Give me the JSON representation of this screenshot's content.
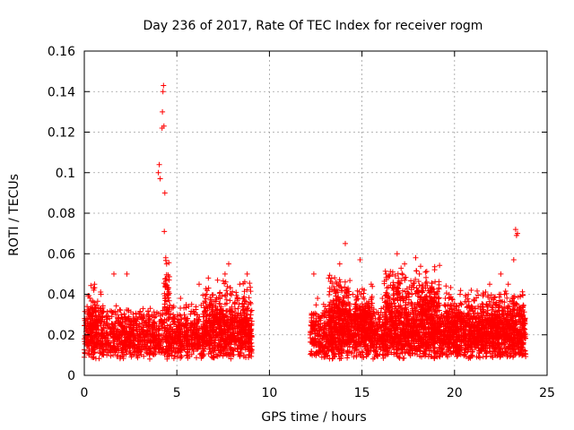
{
  "chart_data": {
    "type": "scatter",
    "title": "Day 236 of 2017, Rate Of TEC Index for receiver rogm",
    "xlabel": "GPS time / hours",
    "ylabel": "ROTI / TECUs",
    "xlim": [
      0,
      25
    ],
    "ylim": [
      0,
      0.16
    ],
    "xticks": [
      0,
      5,
      10,
      15,
      20,
      25
    ],
    "yticks": [
      0,
      0.02,
      0.04,
      0.06,
      0.08,
      0.1,
      0.12,
      0.14,
      0.16
    ],
    "xtick_labels": [
      "0",
      "5",
      "10",
      "15",
      "20",
      "25"
    ],
    "ytick_labels": [
      "0",
      "0.02",
      "0.04",
      "0.06",
      "0.08",
      "0.1",
      "0.12",
      "0.14",
      "0.16"
    ],
    "grid": true,
    "marker": "+",
    "color": "#ff0000",
    "series": [
      {
        "name": "ROTI",
        "points": [
          [
            0.0,
            0.018
          ],
          [
            0.1,
            0.028
          ],
          [
            0.15,
            0.034
          ],
          [
            0.2,
            0.012
          ],
          [
            0.3,
            0.022
          ],
          [
            0.4,
            0.016
          ],
          [
            0.5,
            0.043
          ],
          [
            0.55,
            0.045
          ],
          [
            0.6,
            0.025
          ],
          [
            0.7,
            0.014
          ],
          [
            0.8,
            0.02
          ],
          [
            0.9,
            0.04
          ],
          [
            1.0,
            0.012
          ],
          [
            1.1,
            0.018
          ],
          [
            1.2,
            0.026
          ],
          [
            1.3,
            0.015
          ],
          [
            1.5,
            0.022
          ],
          [
            1.6,
            0.05
          ],
          [
            1.7,
            0.03
          ],
          [
            1.8,
            0.01
          ],
          [
            2.0,
            0.016
          ],
          [
            2.1,
            0.024
          ],
          [
            2.3,
            0.05
          ],
          [
            2.4,
            0.032
          ],
          [
            2.5,
            0.014
          ],
          [
            2.7,
            0.02
          ],
          [
            2.9,
            0.012
          ],
          [
            3.1,
            0.03
          ],
          [
            3.2,
            0.022
          ],
          [
            3.4,
            0.016
          ],
          [
            3.6,
            0.011
          ],
          [
            3.8,
            0.018
          ],
          [
            3.9,
            0.02
          ],
          [
            4.0,
            0.1
          ],
          [
            4.05,
            0.104
          ],
          [
            4.1,
            0.097
          ],
          [
            4.2,
            0.122
          ],
          [
            4.22,
            0.13
          ],
          [
            4.25,
            0.14
          ],
          [
            4.28,
            0.143
          ],
          [
            4.3,
            0.123
          ],
          [
            4.32,
            0.071
          ],
          [
            4.35,
            0.09
          ],
          [
            4.4,
            0.058
          ],
          [
            4.45,
            0.055
          ],
          [
            4.5,
            0.04
          ],
          [
            4.6,
            0.022
          ],
          [
            4.8,
            0.03
          ],
          [
            5.0,
            0.016
          ],
          [
            5.2,
            0.038
          ],
          [
            5.4,
            0.024
          ],
          [
            5.6,
            0.014
          ],
          [
            5.8,
            0.035
          ],
          [
            6.0,
            0.02
          ],
          [
            6.2,
            0.045
          ],
          [
            6.4,
            0.018
          ],
          [
            6.6,
            0.04
          ],
          [
            6.7,
            0.048
          ],
          [
            6.8,
            0.026
          ],
          [
            7.0,
            0.014
          ],
          [
            7.2,
            0.047
          ],
          [
            7.4,
            0.022
          ],
          [
            7.6,
            0.05
          ],
          [
            7.8,
            0.055
          ],
          [
            8.0,
            0.03
          ],
          [
            8.2,
            0.018
          ],
          [
            8.4,
            0.045
          ],
          [
            8.6,
            0.038
          ],
          [
            8.8,
            0.05
          ],
          [
            9.0,
            0.022
          ],
          [
            12.2,
            0.02
          ],
          [
            12.4,
            0.05
          ],
          [
            12.6,
            0.038
          ],
          [
            12.8,
            0.016
          ],
          [
            13.0,
            0.03
          ],
          [
            13.2,
            0.048
          ],
          [
            13.4,
            0.012
          ],
          [
            13.6,
            0.046
          ],
          [
            13.8,
            0.055
          ],
          [
            14.0,
            0.035
          ],
          [
            14.1,
            0.065
          ],
          [
            14.3,
            0.02
          ],
          [
            14.5,
            0.04
          ],
          [
            14.7,
            0.014
          ],
          [
            14.9,
            0.057
          ],
          [
            15.1,
            0.032
          ],
          [
            15.3,
            0.022
          ],
          [
            15.5,
            0.045
          ],
          [
            15.7,
            0.012
          ],
          [
            15.9,
            0.03
          ],
          [
            16.1,
            0.038
          ],
          [
            16.3,
            0.05
          ],
          [
            16.5,
            0.02
          ],
          [
            16.7,
            0.042
          ],
          [
            16.9,
            0.06
          ],
          [
            17.1,
            0.03
          ],
          [
            17.3,
            0.055
          ],
          [
            17.5,
            0.016
          ],
          [
            17.7,
            0.04
          ],
          [
            17.9,
            0.058
          ],
          [
            18.1,
            0.05
          ],
          [
            18.3,
            0.034
          ],
          [
            18.5,
            0.046
          ],
          [
            18.7,
            0.02
          ],
          [
            18.9,
            0.04
          ],
          [
            19.1,
            0.012
          ],
          [
            19.3,
            0.03
          ],
          [
            19.5,
            0.038
          ],
          [
            19.7,
            0.016
          ],
          [
            19.9,
            0.025
          ],
          [
            20.1,
            0.032
          ],
          [
            20.3,
            0.04
          ],
          [
            20.5,
            0.018
          ],
          [
            20.7,
            0.03
          ],
          [
            20.9,
            0.042
          ],
          [
            21.1,
            0.014
          ],
          [
            21.3,
            0.028
          ],
          [
            21.5,
            0.034
          ],
          [
            21.7,
            0.02
          ],
          [
            21.9,
            0.045
          ],
          [
            22.1,
            0.016
          ],
          [
            22.3,
            0.03
          ],
          [
            22.5,
            0.05
          ],
          [
            22.7,
            0.04
          ],
          [
            22.9,
            0.045
          ],
          [
            23.1,
            0.02
          ],
          [
            23.2,
            0.057
          ],
          [
            23.3,
            0.072
          ],
          [
            23.35,
            0.069
          ],
          [
            23.4,
            0.07
          ],
          [
            23.5,
            0.03
          ],
          [
            23.6,
            0.016
          ],
          [
            23.7,
            0.025
          ],
          [
            23.8,
            0.012
          ]
        ],
        "density_bands": [
          {
            "x_range": [
              0.0,
              9.05
            ],
            "y_range": [
              0.008,
              0.036
            ],
            "count": 1800,
            "seed": 11
          },
          {
            "x_range": [
              0.2,
              1.0
            ],
            "y_range": [
              0.02,
              0.045
            ],
            "count": 60,
            "seed": 12
          },
          {
            "x_range": [
              4.3,
              4.6
            ],
            "y_range": [
              0.03,
              0.058
            ],
            "count": 40,
            "seed": 13
          },
          {
            "x_range": [
              6.4,
              9.0
            ],
            "y_range": [
              0.015,
              0.05
            ],
            "count": 260,
            "seed": 14
          },
          {
            "x_range": [
              12.2,
              23.85
            ],
            "y_range": [
              0.008,
              0.036
            ],
            "count": 2600,
            "seed": 21
          },
          {
            "x_range": [
              13.2,
              14.4
            ],
            "y_range": [
              0.02,
              0.05
            ],
            "count": 200,
            "seed": 22
          },
          {
            "x_range": [
              14.6,
              15.6
            ],
            "y_range": [
              0.02,
              0.045
            ],
            "count": 150,
            "seed": 23
          },
          {
            "x_range": [
              16.2,
              19.2
            ],
            "y_range": [
              0.02,
              0.055
            ],
            "count": 450,
            "seed": 24
          },
          {
            "x_range": [
              19.5,
              23.8
            ],
            "y_range": [
              0.018,
              0.045
            ],
            "count": 400,
            "seed": 25
          }
        ]
      }
    ]
  }
}
